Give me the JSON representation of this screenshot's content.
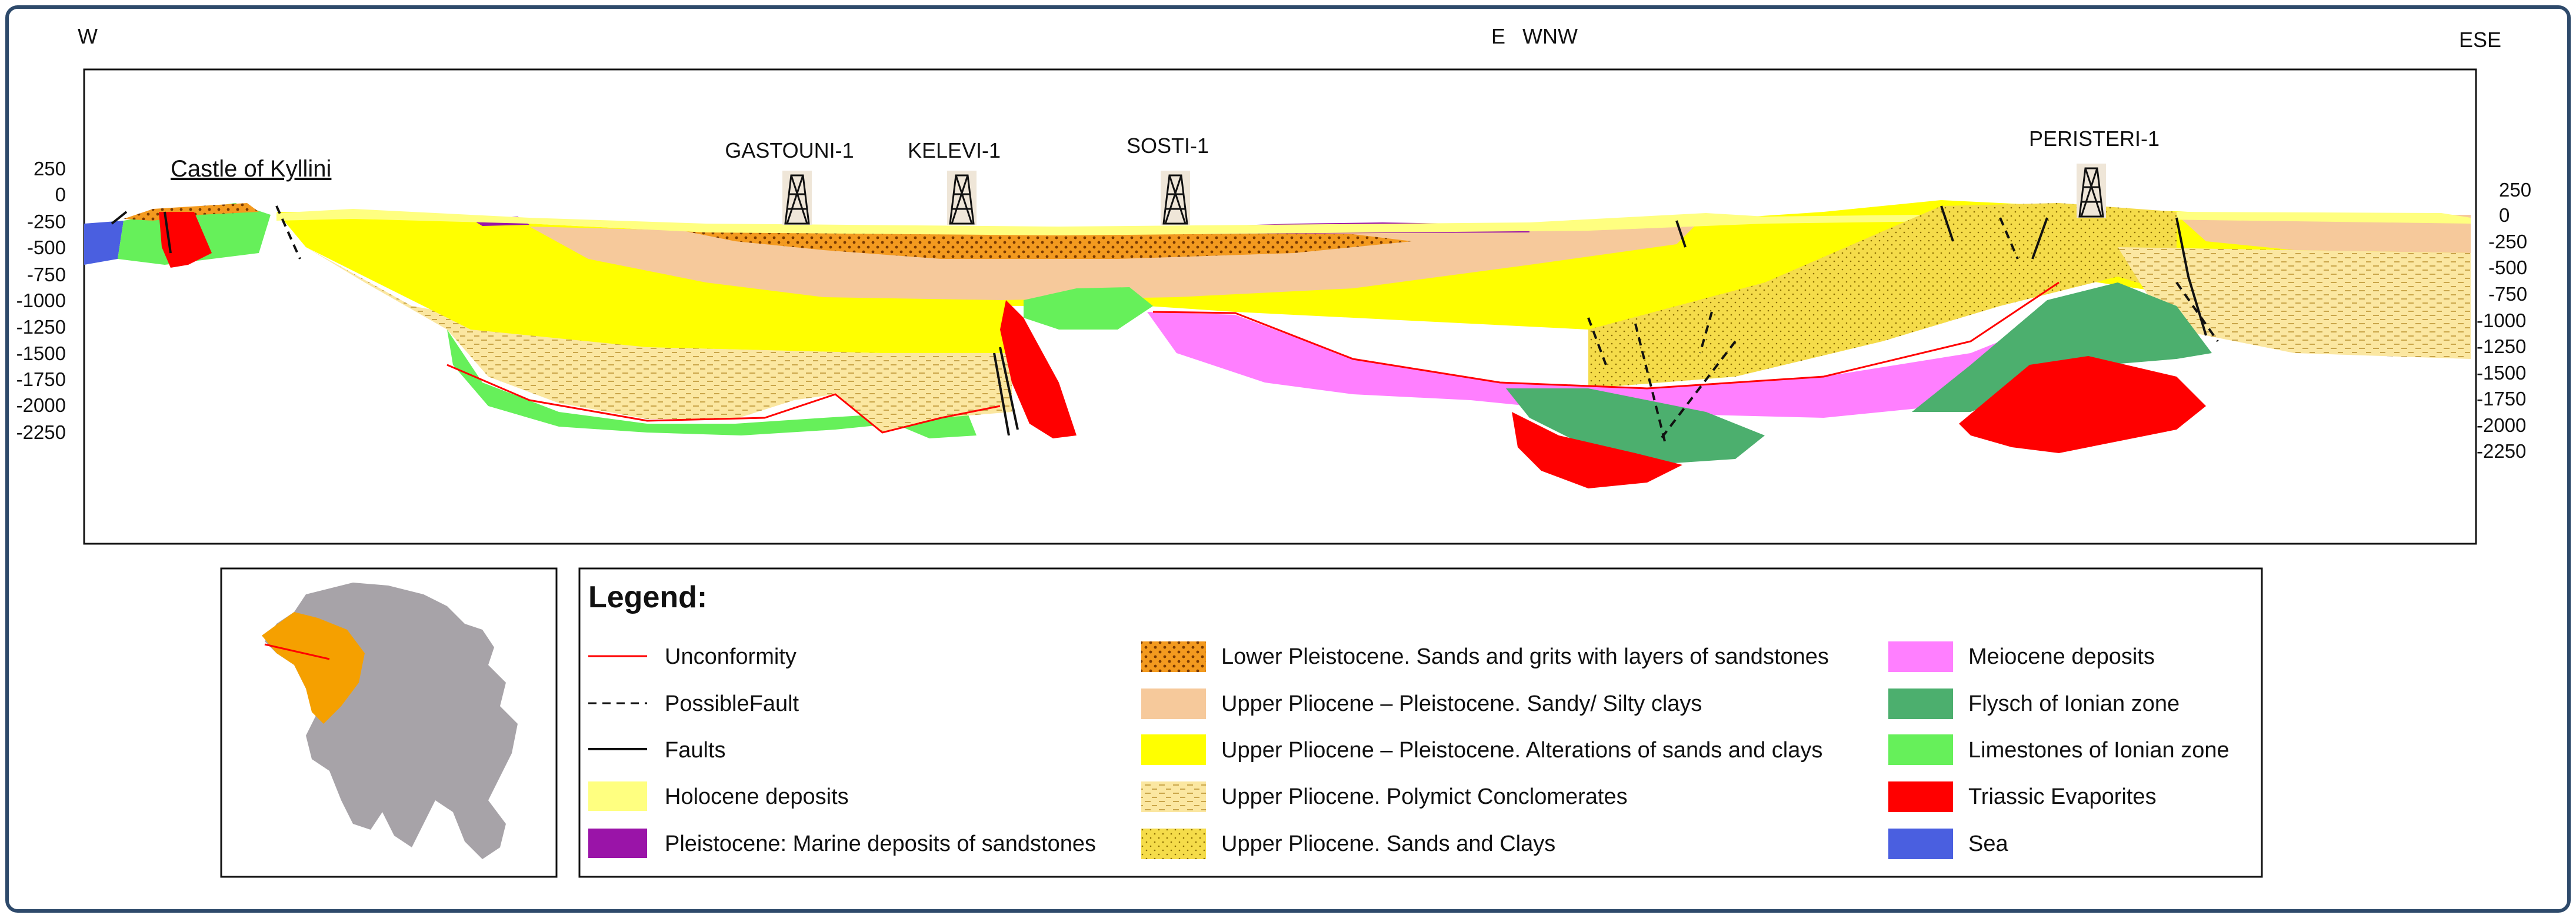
{
  "section": {
    "west_label": "W",
    "east_label": "E",
    "wnw_label": "WNW",
    "ese_label": "ESE",
    "castle_label": "Castle of Kyllini",
    "wells": [
      "GASTOUNI-1",
      "KELEVI-1",
      "SOSTI-1",
      "PERISTERI-1"
    ],
    "left_ticks": [
      "250",
      "0",
      "-250",
      "-500",
      "-750",
      "-1000",
      "-1250",
      "-1500",
      "-1750",
      "-2000",
      "-2250"
    ],
    "right_ticks": [
      "250",
      "0",
      "-250",
      "-500",
      "-750",
      "-1000",
      "-1250",
      "-1500",
      "-1750",
      "-2000",
      "-2250"
    ]
  },
  "legend": {
    "title": "Legend:",
    "items": [
      {
        "label": "Unconformity",
        "symbol": "red-line"
      },
      {
        "label": "PossibleFault",
        "symbol": "dashed-line"
      },
      {
        "label": "Faults",
        "symbol": "solid-line"
      },
      {
        "label": "Holocene deposits",
        "color": "#ffff80"
      },
      {
        "label": "Pleistocene: Marine deposits of sandstones",
        "color": "#9a14a8"
      },
      {
        "label": "Lower Pleistocene. Sands and grits with layers of sandstones",
        "color": "#f39a1f"
      },
      {
        "label": "Upper Pliocene – Pleistocene. Sandy/ Silty clays",
        "color": "#f6c99b"
      },
      {
        "label": "Upper Pliocene – Pleistocene. Alterations of sands and clays",
        "color": "#ffff00"
      },
      {
        "label": "Upper Pliocene. Polymict Conclomerates",
        "color": "#fbe7a1"
      },
      {
        "label": "Upper Pliocene. Sands and Clays",
        "color": "#f5dc4a"
      },
      {
        "label": "Meiocene deposits",
        "color": "#ff7fff"
      },
      {
        "label": "Flysch of Ionian zone",
        "color": "#4caf6e"
      },
      {
        "label": "Limestones of Ionian zone",
        "color": "#66f05a"
      },
      {
        "label": "Triassic Evaporites",
        "color": "#ff0000"
      },
      {
        "label": "Sea",
        "color": "#4a5fe0"
      }
    ]
  }
}
